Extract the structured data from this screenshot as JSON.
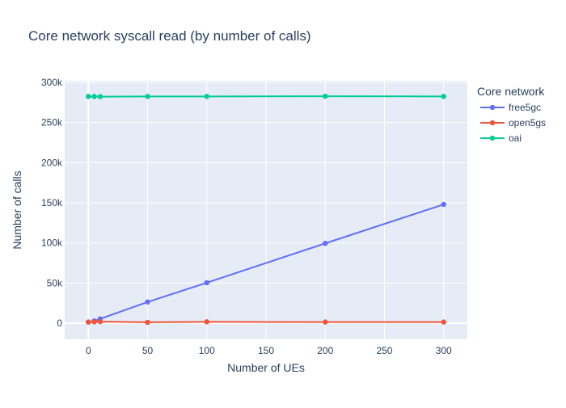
{
  "chart_data": {
    "type": "line",
    "title": "Core network syscall read (by number of calls)",
    "xlabel": "Number of UEs",
    "ylabel": "Number of calls",
    "xlim": [
      -20,
      320
    ],
    "ylim": [
      -20000,
      302000
    ],
    "x_ticks": [
      0,
      50,
      100,
      150,
      200,
      250,
      300
    ],
    "x_tick_labels": [
      "0",
      "50",
      "100",
      "150",
      "200",
      "250",
      "300"
    ],
    "y_ticks": [
      0,
      50000,
      100000,
      150000,
      200000,
      250000,
      300000
    ],
    "y_tick_labels": [
      "0",
      "50k",
      "100k",
      "150k",
      "200k",
      "250k",
      "300k"
    ],
    "grid": true,
    "legend": {
      "title": "Core network",
      "placement": "top-right"
    },
    "series": [
      {
        "name": "free5gc",
        "color": "#636efa",
        "x": [
          0,
          5,
          10,
          50,
          100,
          200,
          300
        ],
        "y": [
          1500,
          3000,
          5500,
          26500,
          50500,
          99500,
          148000
        ]
      },
      {
        "name": "open5gs",
        "color": "#ef553b",
        "x": [
          0,
          5,
          10,
          50,
          100,
          200,
          300
        ],
        "y": [
          1500,
          1800,
          2000,
          1200,
          1800,
          1500,
          1500
        ]
      },
      {
        "name": "oai",
        "color": "#00cc96",
        "x": [
          0,
          5,
          10,
          50,
          100,
          200,
          300
        ],
        "y": [
          282500,
          282500,
          282300,
          282500,
          282500,
          282800,
          282500
        ]
      }
    ]
  }
}
